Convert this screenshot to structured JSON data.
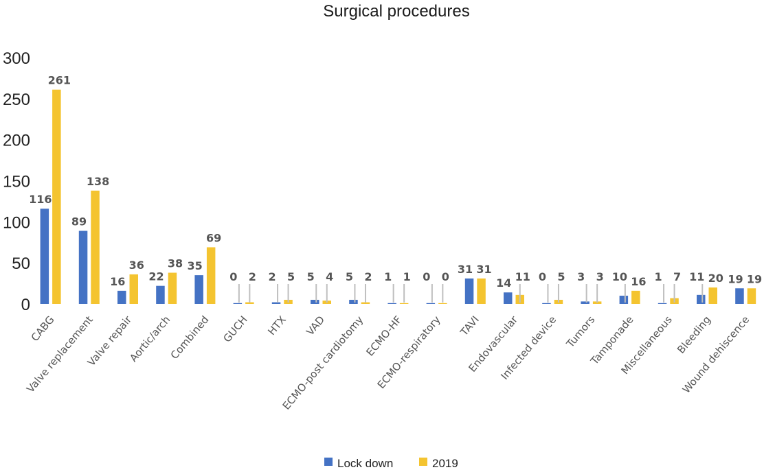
{
  "chart_data": {
    "type": "bar",
    "title": "Surgical procedures",
    "xlabel": "",
    "ylabel": "",
    "ylim": [
      0,
      300
    ],
    "yticks": [
      0,
      50,
      100,
      150,
      200,
      250,
      300
    ],
    "grid": false,
    "legend_position": "bottom",
    "categories": [
      "CABG",
      "Valve replacement",
      "Valve repair",
      "Aortic/arch",
      "Combined",
      "GUCH",
      "HTX",
      "VAD",
      "ECMO-post cardiotomy",
      "ECMO-HF",
      "ECMO-respiratory",
      "TAVI",
      "Endovascular",
      "Infected device",
      "Tumors",
      "Tamponade",
      "Miscellaneous",
      "Bleeding",
      "Wound dehiscence"
    ],
    "series": [
      {
        "name": "Lock down",
        "color": "#4472c4",
        "values": [
          116,
          89,
          16,
          22,
          35,
          0,
          2,
          5,
          5,
          1,
          0,
          31,
          14,
          0,
          3,
          10,
          1,
          11,
          19
        ]
      },
      {
        "name": "2019",
        "color": "#f4c430",
        "values": [
          261,
          138,
          36,
          38,
          69,
          2,
          5,
          4,
          2,
          1,
          0,
          31,
          11,
          5,
          3,
          16,
          7,
          20,
          19
        ]
      }
    ]
  }
}
